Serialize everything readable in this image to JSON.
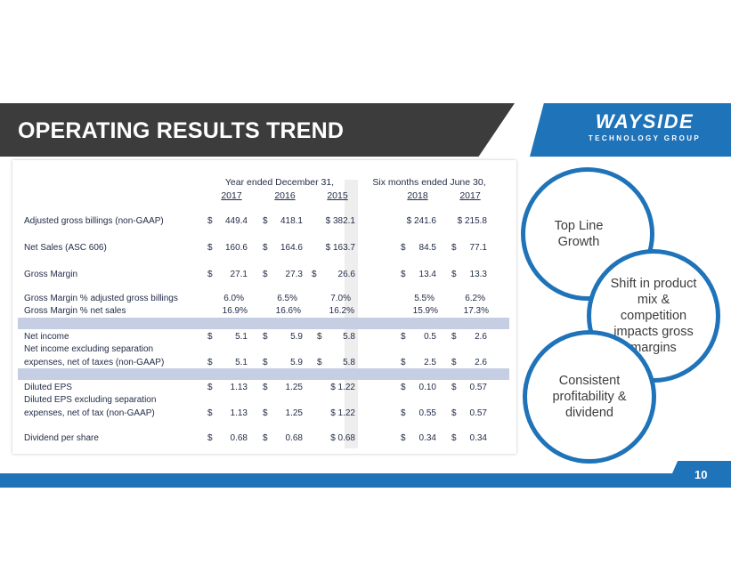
{
  "title": "OPERATING RESULTS TREND",
  "logo": {
    "main": "WAYSIDE",
    "sub": "TECHNOLOGY GROUP"
  },
  "table": {
    "group_headers": [
      "Year ended December 31,",
      "Six months ended June 30,"
    ],
    "years": [
      "2017",
      "2016",
      "2015",
      "2018",
      "2017"
    ],
    "rows": [
      {
        "label": "Adjusted gross billings (non-GAAP)",
        "cells": [
          "$",
          "449.4",
          "$",
          "418.1",
          "$ 382.1",
          "$ 241.6",
          "$ 215.8"
        ]
      },
      {
        "label": "Net Sales (ASC 606)",
        "cells": [
          "$",
          "160.6",
          "$",
          "164.6",
          "$ 163.7",
          "$",
          "84.5",
          "$",
          "77.1"
        ]
      },
      {
        "label": "Gross Margin",
        "cells": [
          "$",
          "27.1",
          "$",
          "27.3",
          "$",
          "26.6",
          "$",
          "13.4",
          "$",
          "13.3"
        ]
      },
      {
        "label": "Gross Margin % adjusted gross billings",
        "cells": [
          "6.0%",
          "6.5%",
          "7.0%",
          "5.5%",
          "6.2%"
        ]
      },
      {
        "label": "Gross Margin % net sales",
        "cells": [
          "16.9%",
          "16.6%",
          "16.2%",
          "15.9%",
          "17.3%"
        ]
      },
      {
        "label": "Net income",
        "cells": [
          "$",
          "5.1",
          "$",
          "5.9",
          "$",
          "5.8",
          "$",
          "0.5",
          "$",
          "2.6"
        ]
      },
      {
        "label": "Net income excluding separation",
        "cells": []
      },
      {
        "label": "expenses, net of taxes (non-GAAP)",
        "cells": [
          "$",
          "5.1",
          "$",
          "5.9",
          "$",
          "5.8",
          "$",
          "2.5",
          "$",
          "2.6"
        ]
      },
      {
        "label": "Diluted EPS",
        "cells": [
          "$",
          "1.13",
          "$",
          "1.25",
          "$ 1.22",
          "$",
          "0.10",
          "$",
          "0.57"
        ]
      },
      {
        "label": "Diluted EPS excluding separation",
        "cells": []
      },
      {
        "label": "expenses, net of tax (non-GAAP)",
        "cells": [
          "$",
          "1.13",
          "$",
          "1.25",
          "$ 1.22",
          "$",
          "0.55",
          "$",
          "0.57"
        ]
      },
      {
        "label": "Dividend per share",
        "cells": [
          "$",
          "0.68",
          "$",
          "0.68",
          "$ 0.68",
          "$",
          "0.34",
          "$",
          "0.34"
        ]
      }
    ]
  },
  "circles": {
    "top": "Top Line Growth",
    "middle": "Shift in product mix & competition impacts gross margins",
    "bottom": "Consistent profitability & dividend"
  },
  "page_number": "10",
  "colors": {
    "accent": "#1f73b8",
    "dark": "#3c3c3c",
    "highlight": "#c5cee3"
  }
}
